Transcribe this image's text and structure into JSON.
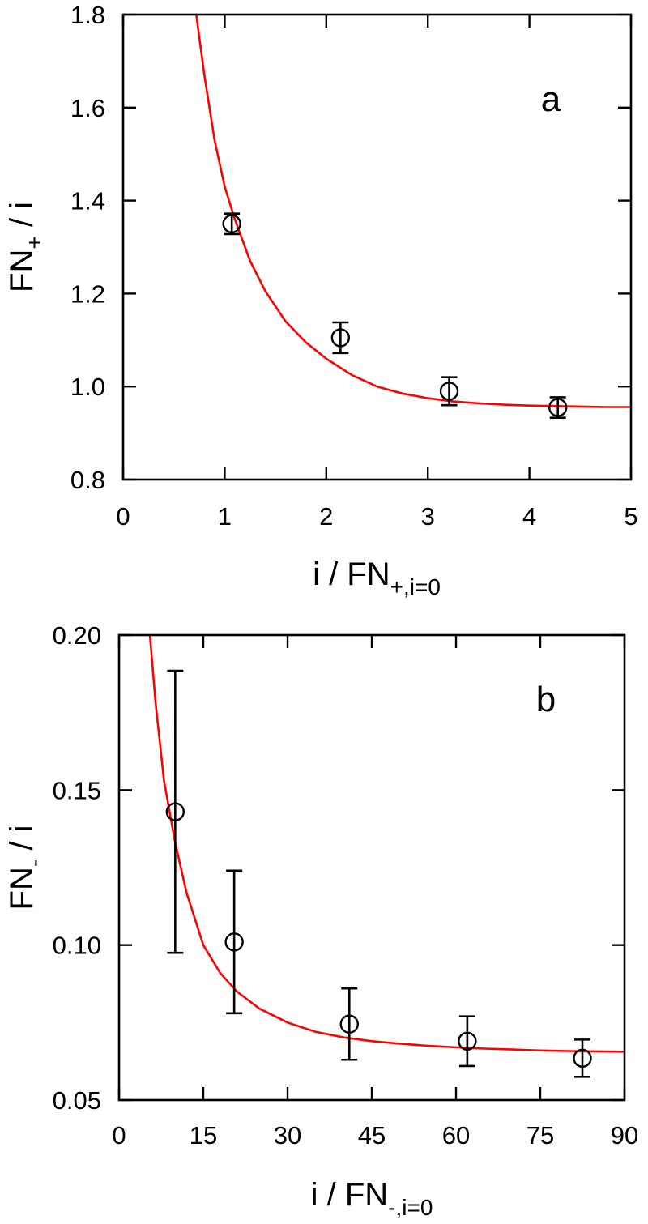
{
  "chart_data": [
    {
      "type": "scatter",
      "panel_label": "a",
      "xlabel": {
        "main": "i / FN",
        "sub": "+,i=0"
      },
      "ylabel": {
        "main": "FN",
        "sub": "+",
        "tail": " / i"
      },
      "xlim": [
        0,
        5
      ],
      "ylim": [
        0.8,
        1.8
      ],
      "x_ticks": [
        0,
        1,
        2,
        3,
        4,
        5
      ],
      "x_tick_labels": [
        "0",
        "1",
        "2",
        "3",
        "4",
        "5"
      ],
      "y_ticks": [
        0.8,
        1.0,
        1.2,
        1.4,
        1.6,
        1.8
      ],
      "y_tick_labels": [
        "0.8",
        "1.0",
        "1.2",
        "1.4",
        "1.6",
        "1.8"
      ],
      "grid": false,
      "series": [
        {
          "kind": "points",
          "marker": "open-circle",
          "color": "#000000",
          "x": [
            1.07,
            2.14,
            3.21,
            4.28
          ],
          "y": [
            1.35,
            1.105,
            0.99,
            0.955
          ],
          "err": [
            0.022,
            0.033,
            0.03,
            0.022
          ]
        },
        {
          "kind": "fit-curve",
          "color": "#ff0000",
          "x": [
            0.72,
            0.8,
            0.9,
            1.0,
            1.1,
            1.25,
            1.4,
            1.6,
            1.8,
            2.0,
            2.25,
            2.5,
            2.75,
            3.0,
            3.25,
            3.5,
            3.75,
            4.0,
            4.25,
            4.5,
            4.75,
            5.0
          ],
          "y": [
            1.8,
            1.67,
            1.53,
            1.43,
            1.36,
            1.27,
            1.205,
            1.14,
            1.095,
            1.06,
            1.025,
            1.0,
            0.985,
            0.975,
            0.968,
            0.964,
            0.961,
            0.959,
            0.958,
            0.957,
            0.956,
            0.956
          ]
        }
      ]
    },
    {
      "type": "scatter",
      "panel_label": "b",
      "xlabel": {
        "main": "i / FN",
        "sub": "-,i=0"
      },
      "ylabel": {
        "main": "FN",
        "sub": "-",
        "tail": " / i"
      },
      "xlim": [
        0,
        90
      ],
      "ylim": [
        0.05,
        0.2
      ],
      "x_ticks": [
        0,
        15,
        30,
        45,
        60,
        75,
        90
      ],
      "x_tick_labels": [
        "0",
        "15",
        "30",
        "45",
        "60",
        "75",
        "90"
      ],
      "y_ticks": [
        0.05,
        0.1,
        0.15,
        0.2
      ],
      "y_tick_labels": [
        "0.05",
        "0.10",
        "0.15",
        "0.20"
      ],
      "grid": false,
      "series": [
        {
          "kind": "points",
          "marker": "open-circle",
          "color": "#000000",
          "x": [
            10.0,
            20.5,
            41.0,
            62.0,
            82.5
          ],
          "y": [
            0.143,
            0.101,
            0.0745,
            0.069,
            0.0635
          ],
          "err": [
            0.0455,
            0.023,
            0.0115,
            0.008,
            0.006
          ]
        },
        {
          "kind": "fit-curve",
          "color": "#ff0000",
          "x": [
            5.5,
            6.5,
            8,
            10,
            12,
            15,
            18,
            21,
            25,
            30,
            35,
            40,
            45,
            50,
            55,
            60,
            65,
            70,
            75,
            80,
            85,
            90
          ],
          "y": [
            0.2,
            0.178,
            0.153,
            0.133,
            0.117,
            0.1,
            0.091,
            0.085,
            0.0795,
            0.075,
            0.072,
            0.0702,
            0.069,
            0.0682,
            0.0675,
            0.067,
            0.0666,
            0.0663,
            0.066,
            0.0658,
            0.0657,
            0.0656
          ]
        }
      ]
    }
  ]
}
